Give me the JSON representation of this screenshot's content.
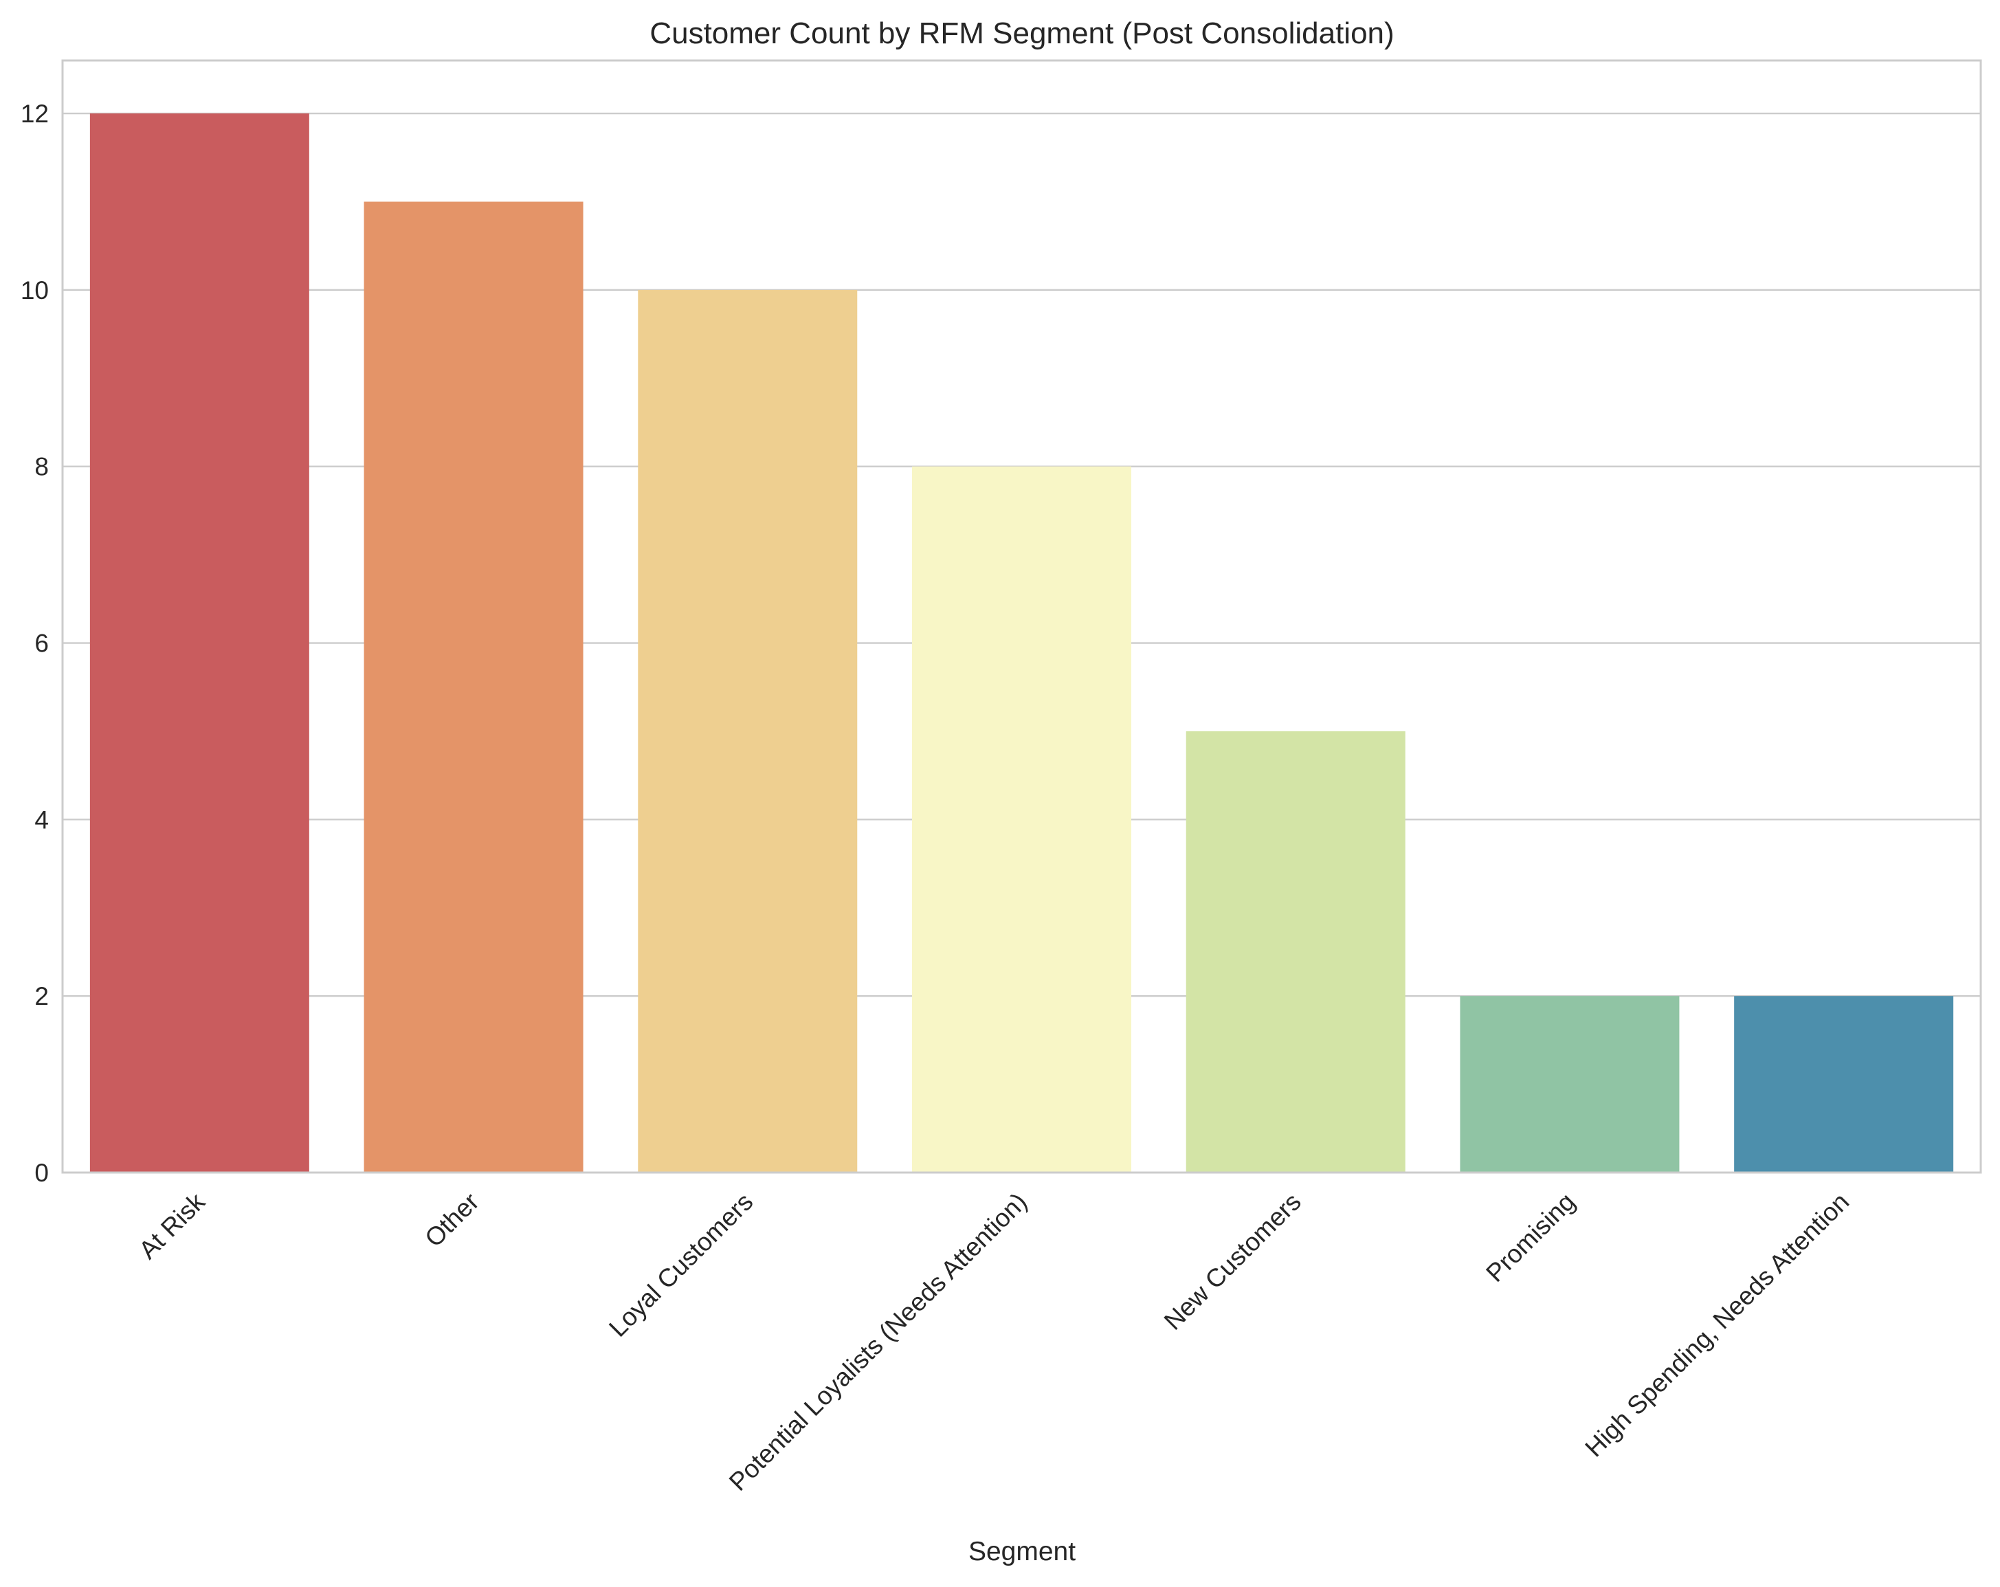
{
  "chart_data": {
    "type": "bar",
    "title": "Customer Count by RFM Segment (Post Consolidation)",
    "xlabel": "Segment",
    "ylabel": "",
    "categories": [
      "At Risk",
      "Other",
      "Loyal Customers",
      "Potential Loyalists (Needs Attention)",
      "New Customers",
      "Promising",
      "High Spending, Needs Attention"
    ],
    "values": [
      12,
      11,
      10,
      8,
      5,
      2,
      2
    ],
    "colors": [
      "#c95c5e",
      "#e49468",
      "#eecf90",
      "#f8f6c6",
      "#d3e4a6",
      "#90c4a4",
      "#4d8fac"
    ],
    "ylim": [
      0,
      12.6
    ],
    "yticks": [
      0,
      2,
      4,
      6,
      8,
      10,
      12
    ],
    "grid": true,
    "legend": "none"
  }
}
